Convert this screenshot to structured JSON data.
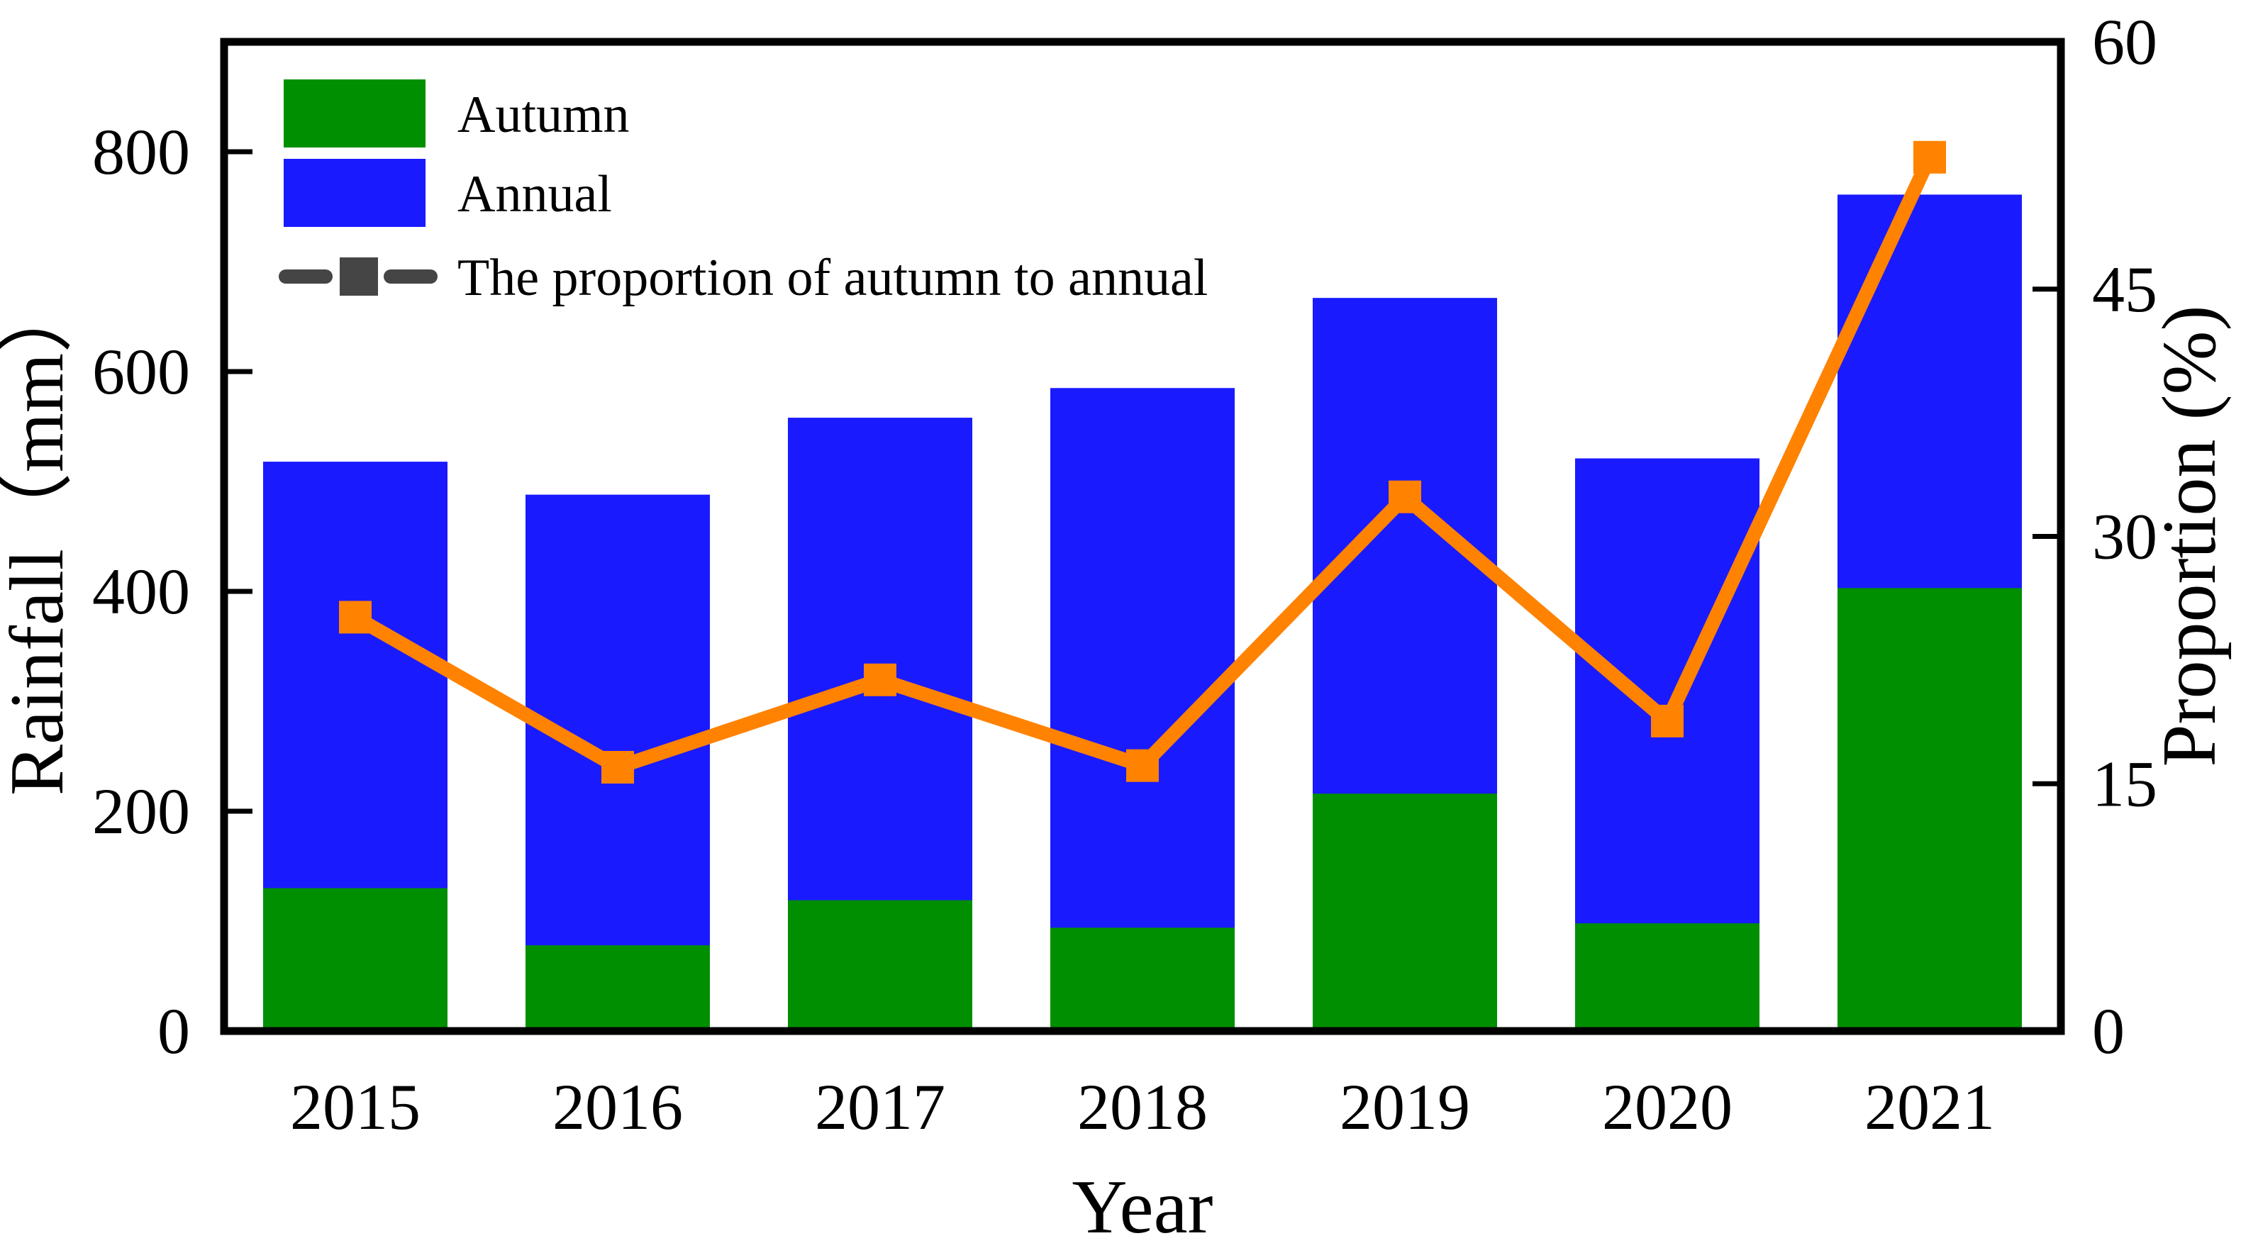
{
  "chart_data": {
    "type": "bar",
    "subtype": "overlaid-bars-with-line",
    "categories": [
      "2015",
      "2016",
      "2017",
      "2018",
      "2019",
      "2020",
      "2021"
    ],
    "series": [
      {
        "name": "Autumn",
        "type": "bar",
        "axis": "left",
        "color_key": "autumn",
        "values": [
          130,
          78,
          119,
          94,
          216,
          98,
          403
        ]
      },
      {
        "name": "Annual",
        "type": "bar",
        "axis": "left",
        "color_key": "annual",
        "values": [
          518,
          488,
          558,
          585,
          667,
          521,
          761
        ]
      },
      {
        "name": "The proportion of autumn to annual",
        "type": "line",
        "axis": "right",
        "color_key": "proportion",
        "values": [
          25.1,
          16.0,
          21.3,
          16.1,
          32.4,
          18.8,
          53.0
        ]
      }
    ],
    "title": "",
    "xlabel": "Year",
    "ylabel_left": "Rainfall（mm）",
    "ylabel_right": "Proportion (%)",
    "ylim_left": [
      0,
      900
    ],
    "yticks_left": [
      0,
      200,
      400,
      600,
      800
    ],
    "ylim_right": [
      0,
      60
    ],
    "yticks_right": [
      0,
      15,
      30,
      45,
      60
    ],
    "grid": false,
    "legend_position": "top-left",
    "bar_note": "Annual bar drawn full height in blue; Autumn portion overlaid in green at the bottom of the same bar."
  },
  "axes": {
    "left": {
      "title": "Rainfall（mm）"
    },
    "right": {
      "title": "Proportion (%)"
    },
    "x": {
      "title": "Year"
    }
  },
  "legend": {
    "autumn_label": "Autumn",
    "annual_label": "Annual",
    "proportion_label": "The proportion of autumn to annual"
  },
  "colors": {
    "autumn": "#008f00",
    "annual": "#1a1aff",
    "proportion": "#ff8200",
    "legend_line": "#454545",
    "axis": "#000000",
    "background": "#ffffff"
  }
}
